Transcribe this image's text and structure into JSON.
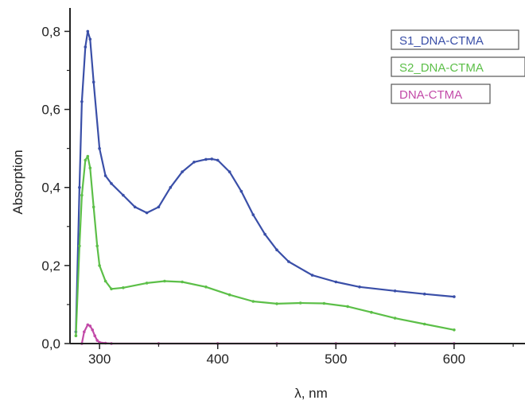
{
  "chart_data": {
    "type": "line",
    "title": "",
    "xlabel": "λ, nm",
    "ylabel": "Absorption",
    "xlim": [
      275,
      660
    ],
    "ylim": [
      0,
      0.86
    ],
    "x_ticks": [
      300,
      400,
      500,
      600
    ],
    "x_tick_labels": [
      "300",
      "400",
      "500",
      "600"
    ],
    "y_ticks": [
      0.0,
      0.2,
      0.4,
      0.6,
      0.8
    ],
    "y_tick_labels": [
      "0,0",
      "0,2",
      "0,4",
      "0,6",
      "0,8"
    ],
    "grid": false,
    "legend_position": "top-right",
    "series": [
      {
        "name": "S1_DNA-CTMA",
        "color": "#3a4fa8",
        "x": [
          280,
          283,
          285,
          288,
          290,
          292,
          295,
          300,
          305,
          310,
          320,
          330,
          340,
          350,
          360,
          370,
          380,
          390,
          395,
          400,
          410,
          420,
          430,
          440,
          450,
          460,
          480,
          500,
          520,
          550,
          575,
          600
        ],
        "y": [
          0.03,
          0.4,
          0.62,
          0.76,
          0.8,
          0.78,
          0.67,
          0.5,
          0.43,
          0.41,
          0.38,
          0.35,
          0.335,
          0.35,
          0.4,
          0.44,
          0.465,
          0.472,
          0.473,
          0.47,
          0.44,
          0.39,
          0.33,
          0.28,
          0.24,
          0.21,
          0.175,
          0.158,
          0.145,
          0.135,
          0.127,
          0.12
        ]
      },
      {
        "name": "S2_DNA-CTMA",
        "color": "#5cbf48",
        "x": [
          280,
          283,
          285,
          288,
          290,
          292,
          295,
          298,
          300,
          305,
          310,
          320,
          340,
          355,
          370,
          390,
          410,
          430,
          450,
          470,
          490,
          510,
          530,
          550,
          575,
          600
        ],
        "y": [
          0.02,
          0.25,
          0.38,
          0.47,
          0.48,
          0.45,
          0.35,
          0.25,
          0.2,
          0.16,
          0.14,
          0.143,
          0.155,
          0.16,
          0.158,
          0.145,
          0.125,
          0.108,
          0.102,
          0.104,
          0.103,
          0.095,
          0.08,
          0.065,
          0.05,
          0.035
        ]
      },
      {
        "name": "DNA-CTMA",
        "color": "#c24aa8",
        "x": [
          285,
          287,
          290,
          292,
          294,
          296,
          298,
          300,
          305,
          310,
          350,
          400,
          450,
          500,
          550,
          600
        ],
        "y": [
          0.0,
          0.03,
          0.048,
          0.045,
          0.035,
          0.02,
          0.008,
          0.003,
          0.001,
          0.0,
          0.0,
          0.0,
          0.0,
          0.0,
          0.0,
          0.0
        ]
      }
    ]
  }
}
